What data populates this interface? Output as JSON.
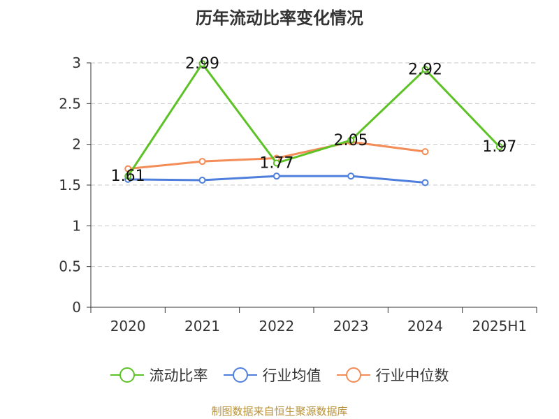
{
  "chart_data": {
    "type": "line",
    "title": "历年流动比率变化情况",
    "categories": [
      "2020",
      "2021",
      "2022",
      "2023",
      "2024",
      "2025H1"
    ],
    "ylim": [
      0,
      3
    ],
    "yticks": [
      "0",
      "0.5",
      "1",
      "1.5",
      "2",
      "2.5",
      "3"
    ],
    "grid": true,
    "legend_position": "bottom",
    "series": [
      {
        "name": "流动比率",
        "color": "#5cc225",
        "values": [
          1.61,
          2.99,
          1.77,
          2.05,
          2.92,
          1.97
        ],
        "labels": [
          "1.61",
          "2.99",
          "1.77",
          "2.05",
          "2.92",
          "1.97"
        ]
      },
      {
        "name": "行业均值",
        "color": "#4f7fdc",
        "values": [
          1.57,
          1.56,
          1.61,
          1.61,
          1.53,
          null
        ],
        "labels": []
      },
      {
        "name": "行业中位数",
        "color": "#f48c57",
        "values": [
          1.7,
          1.79,
          1.83,
          2.03,
          1.91,
          null
        ],
        "labels": []
      }
    ]
  },
  "footer": {
    "source": "制图数据来自恒生聚源数据库"
  }
}
